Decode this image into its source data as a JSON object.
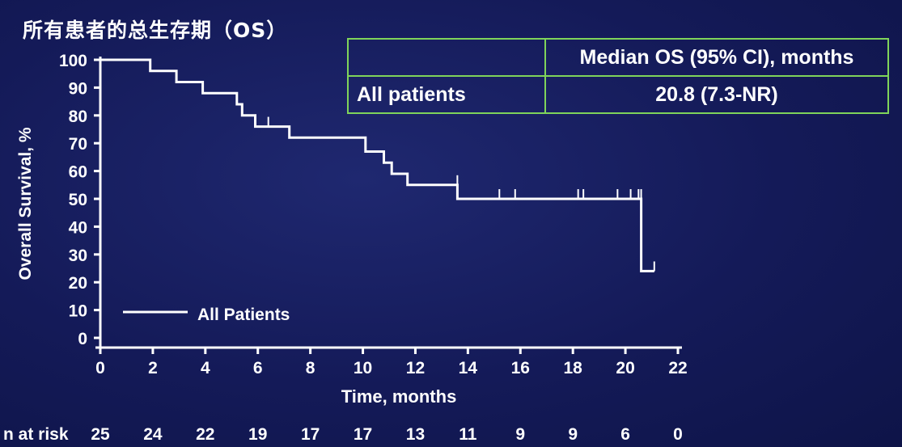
{
  "title": "所有患者的总生存期（OS）",
  "summary_table": {
    "header_empty": "",
    "header": "Median OS (95% CI), months",
    "row_label": "All patients",
    "row_value": "20.8 (7.3-NR)"
  },
  "chart_data": {
    "type": "line",
    "title": "所有患者的总生存期（OS）",
    "xlabel": "Time, months",
    "ylabel": "Overall Survival, %",
    "xlim": [
      0,
      22
    ],
    "ylim": [
      0,
      100
    ],
    "x_ticks": [
      0,
      2,
      4,
      6,
      8,
      10,
      12,
      14,
      16,
      18,
      20,
      22
    ],
    "y_ticks": [
      0,
      10,
      20,
      30,
      40,
      50,
      60,
      70,
      80,
      90,
      100
    ],
    "grid": false,
    "legend": {
      "position": "bottom-left",
      "entries": [
        "All Patients"
      ]
    },
    "series": [
      {
        "name": "All Patients",
        "step": true,
        "points": [
          [
            0,
            100
          ],
          [
            1.9,
            100
          ],
          [
            1.9,
            96
          ],
          [
            2.9,
            96
          ],
          [
            2.9,
            92
          ],
          [
            3.9,
            92
          ],
          [
            3.9,
            88
          ],
          [
            5.2,
            88
          ],
          [
            5.2,
            84
          ],
          [
            5.4,
            84
          ],
          [
            5.4,
            80
          ],
          [
            5.9,
            80
          ],
          [
            5.9,
            76
          ],
          [
            7.2,
            76
          ],
          [
            7.2,
            72
          ],
          [
            10.1,
            72
          ],
          [
            10.1,
            67
          ],
          [
            10.8,
            67
          ],
          [
            10.8,
            63
          ],
          [
            11.1,
            63
          ],
          [
            11.1,
            59
          ],
          [
            11.7,
            59
          ],
          [
            11.7,
            55
          ],
          [
            13.6,
            55
          ],
          [
            13.6,
            50
          ],
          [
            20.6,
            50
          ],
          [
            20.6,
            24
          ],
          [
            21.1,
            24
          ]
        ],
        "censored": [
          [
            6.4,
            76
          ],
          [
            13.6,
            55
          ],
          [
            15.2,
            50
          ],
          [
            15.8,
            50
          ],
          [
            18.2,
            50
          ],
          [
            18.4,
            50
          ],
          [
            19.7,
            50
          ],
          [
            20.2,
            50
          ],
          [
            20.5,
            50
          ],
          [
            20.6,
            50
          ],
          [
            21.1,
            24
          ]
        ]
      }
    ],
    "risk_table": {
      "label": "n at risk",
      "times": [
        0,
        2,
        4,
        6,
        8,
        10,
        12,
        14,
        16,
        18,
        20,
        22
      ],
      "values": [
        "25",
        "24",
        "22",
        "19",
        "17",
        "17",
        "13",
        "11",
        "9",
        "9",
        "6",
        "0"
      ]
    }
  }
}
